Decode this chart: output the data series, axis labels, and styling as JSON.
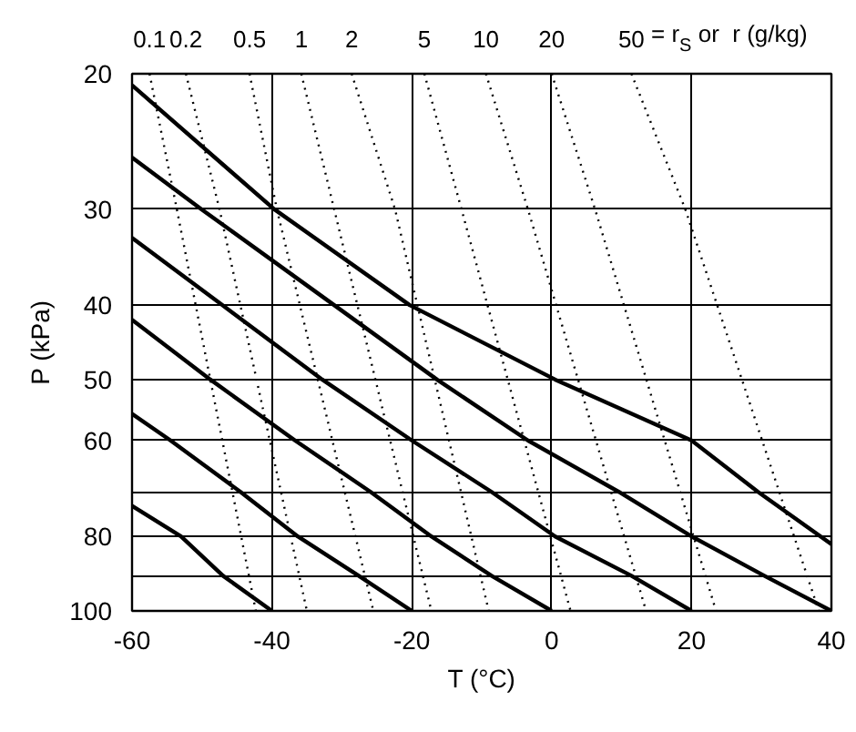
{
  "chart_data": {
    "type": "line",
    "xlabel": "T (°C)",
    "ylabel": "P (kPa)",
    "xlim": [
      -60,
      40
    ],
    "xticks": [
      -60,
      -40,
      -20,
      0,
      20,
      40
    ],
    "ylim": [
      100,
      20
    ],
    "yticks": [
      20,
      30,
      40,
      50,
      60,
      {
        "value": 70,
        "label": null
      },
      80,
      {
        "value": 90,
        "label": null
      },
      100
    ],
    "log": "y",
    "grid": true,
    "marker": "none",
    "annotations": [
      "= r$_{S}$ or  r (g/kg)"
    ],
    "series": [
      {
        "color": "#000000",
        "line_style": "solid",
        "x": [
          -60,
          -53,
          -47,
          -40
        ],
        "values": [
          73,
          80,
          90,
          100
        ]
      },
      {
        "color": "#000000",
        "line_style": "solid",
        "x": [
          -60,
          -54.5,
          -44.5,
          -36.3,
          -27.6,
          -20
        ],
        "values": [
          55.4,
          60,
          70,
          80,
          90,
          100
        ]
      },
      {
        "color": "#000000",
        "line_style": "solid",
        "x": [
          -60,
          -48.8,
          -36.7,
          -25.9,
          -17.2,
          -8.6,
          0
        ],
        "values": [
          41.8,
          50,
          60,
          70,
          80,
          90,
          100
        ]
      },
      {
        "color": "#000000",
        "line_style": "solid",
        "x": [
          -60,
          -47.1,
          -32.8,
          -20,
          -8.6,
          0.5,
          11.4,
          20
        ],
        "values": [
          32.7,
          40,
          50,
          60,
          70,
          80,
          90,
          100
        ]
      },
      {
        "color": "#000000",
        "line_style": "solid",
        "x": [
          -60,
          -50.1,
          -31.1,
          -16.4,
          -3.4,
          9.6,
          20,
          30.4,
          40
        ],
        "values": [
          25.7,
          30,
          40,
          50,
          60,
          70,
          80,
          90,
          100
        ]
      },
      {
        "color": "#000000",
        "line_style": "solid",
        "x": [
          -60,
          -39.7,
          -20.3,
          0.5,
          20,
          29.5,
          40
        ],
        "values": [
          20.7,
          30,
          40,
          50,
          60,
          70,
          81.9
        ]
      },
      {
        "name": "0.1",
        "color": "#000000",
        "line_style": "dotted",
        "x": [
          -57.5,
          -53.6,
          -42.3
        ],
        "values": [
          20,
          30,
          100
        ]
      },
      {
        "name": "0.2",
        "color": "#000000",
        "line_style": "dotted",
        "x": [
          -52.3,
          -47.5,
          -35
        ],
        "values": [
          20,
          30,
          100
        ]
      },
      {
        "name": "0.5",
        "color": "#000000",
        "line_style": "dotted",
        "x": [
          -43.2,
          -39.3,
          -25.5
        ],
        "values": [
          20,
          30,
          100
        ]
      },
      {
        "name": "1",
        "color": "#000000",
        "line_style": "dotted",
        "x": [
          -35.8,
          -31.1,
          -17.2
        ],
        "values": [
          20,
          30,
          100
        ]
      },
      {
        "name": "2",
        "color": "#000000",
        "line_style": "dotted",
        "x": [
          -28.6,
          -22.4,
          -9
        ],
        "values": [
          20,
          30,
          100
        ]
      },
      {
        "name": "5",
        "color": "#000000",
        "line_style": "dotted",
        "x": [
          -18.2,
          -12.9,
          2.7
        ],
        "values": [
          20,
          30,
          100
        ]
      },
      {
        "name": "10",
        "color": "#000000",
        "line_style": "dotted",
        "x": [
          -9.4,
          -3.4,
          13.5
        ],
        "values": [
          20,
          30,
          100
        ]
      },
      {
        "name": "20",
        "color": "#000000",
        "line_style": "dotted",
        "x": [
          0,
          6.2,
          23.5
        ],
        "values": [
          20,
          30,
          100
        ]
      },
      {
        "name": "50",
        "color": "#000000",
        "line_style": "dotted",
        "x": [
          11.4,
          19.1,
          38.2
        ],
        "values": [
          20,
          30,
          100
        ]
      }
    ]
  }
}
